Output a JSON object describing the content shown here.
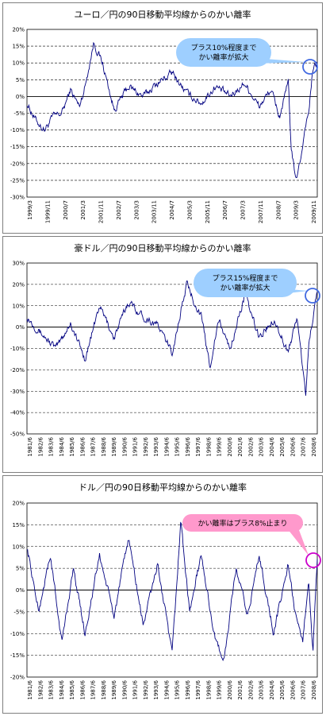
{
  "chart_data": [
    {
      "type": "line",
      "title": "ユーロ／円の90日移動平均線からのかい離率",
      "ylim": [
        -30,
        20
      ],
      "yticks": [
        "20%",
        "15%",
        "10%",
        "5%",
        "0%",
        "-5%",
        "-10%",
        "-15%",
        "-20%",
        "-25%",
        "-30%"
      ],
      "xticks": [
        "1999/3",
        "1999/11",
        "2000/7",
        "2001/3",
        "2001/11",
        "2002/7",
        "2003/3",
        "2003/11",
        "2004/7",
        "2005/3",
        "2005/11",
        "2006/7",
        "2007/3",
        "2007/11",
        "2008/7",
        "2009/3",
        "2009/11"
      ],
      "grid": true,
      "line_color": "#000080",
      "series": [
        {
          "x": [
            0,
            0.03,
            0.06,
            0.09,
            0.12,
            0.15,
            0.18,
            0.2,
            0.23,
            0.26,
            0.3,
            0.35,
            0.4,
            0.45,
            0.5,
            0.55,
            0.6,
            0.65,
            0.7,
            0.75,
            0.8,
            0.84,
            0.87,
            0.9,
            0.91,
            0.925,
            0.94,
            0.96,
            0.97,
            0.985,
            1.0
          ],
          "y": [
            -2,
            -7,
            -10,
            -6,
            -5,
            2,
            -3,
            3,
            16,
            10,
            -4,
            3,
            0,
            4,
            7,
            1,
            -2,
            3,
            0,
            4,
            -3,
            2,
            -6,
            4,
            -15,
            -25,
            -20,
            -8,
            -5,
            8,
            10
          ]
        }
      ],
      "annotation": {
        "text_line1": "プラス10%程度まで",
        "text_line2": "かい離率が拡大",
        "marker_color": "#4169E1",
        "bubble_color": "#9ECFFF"
      }
    },
    {
      "type": "line",
      "title": "豪ドル／円の90日移動平均線からのかい離率",
      "ylim": [
        -50,
        30
      ],
      "yticks": [
        "30%",
        "20%",
        "10%",
        "0%",
        "-10%",
        "-20%",
        "-30%",
        "-40%",
        "-50%"
      ],
      "xticks": [
        "1981/6",
        "1982/6",
        "1983/6",
        "1984/6",
        "1985/6",
        "1986/6",
        "1987/6",
        "1988/6",
        "1989/6",
        "1990/6",
        "1991/6",
        "1992/6",
        "1993/6",
        "1994/6",
        "1995/6",
        "1996/6",
        "1997/6",
        "1998/6",
        "1999/6",
        "2000/6",
        "2001/6",
        "2002/6",
        "2003/6",
        "2004/6",
        "2005/6",
        "2006/6",
        "2007/6",
        "2008/6"
      ],
      "grid": true,
      "line_color": "#000080",
      "series": [
        {
          "x": [
            0,
            0.05,
            0.1,
            0.15,
            0.2,
            0.25,
            0.3,
            0.35,
            0.4,
            0.45,
            0.5,
            0.55,
            0.6,
            0.63,
            0.66,
            0.7,
            0.75,
            0.8,
            0.85,
            0.9,
            0.93,
            0.95,
            0.96,
            0.97,
            0.985,
            1.0
          ],
          "y": [
            5,
            -3,
            -10,
            2,
            -15,
            10,
            -5,
            12,
            5,
            1,
            -12,
            20,
            5,
            -18,
            3,
            -10,
            15,
            -5,
            4,
            -12,
            5,
            -20,
            -32,
            -10,
            5,
            15
          ]
        }
      ],
      "annotation": {
        "text_line1": "プラス15%程度まで",
        "text_line2": "かい離率が拡大",
        "marker_color": "#4169E1",
        "bubble_color": "#9ECFFF"
      }
    },
    {
      "type": "line",
      "title": "ドル／円の90日移動平均線からのかい離率",
      "ylim": [
        -20,
        20
      ],
      "yticks": [
        "20%",
        "15%",
        "10%",
        "5%",
        "0%",
        "-5%",
        "-10%",
        "-15%",
        "-20%"
      ],
      "xticks": [
        "1981/6",
        "1982/6",
        "1983/6",
        "1984/6",
        "1985/6",
        "1986/6",
        "1987/6",
        "1988/6",
        "1989/6",
        "1990/6",
        "1991/6",
        "1992/6",
        "1993/6",
        "1994/6",
        "1995/6",
        "1996/6",
        "1997/6",
        "1998/6",
        "1999/6",
        "2000/6",
        "2001/6",
        "2002/6",
        "2003/6",
        "2004/6",
        "2005/6",
        "2006/6",
        "2007/6",
        "2008/6"
      ],
      "grid": true,
      "line_color": "#000080",
      "series": [
        {
          "x": [
            0,
            0.04,
            0.08,
            0.12,
            0.16,
            0.2,
            0.25,
            0.3,
            0.35,
            0.4,
            0.45,
            0.5,
            0.53,
            0.56,
            0.6,
            0.65,
            0.68,
            0.72,
            0.76,
            0.8,
            0.85,
            0.9,
            0.93,
            0.95,
            0.97,
            0.985,
            1.0
          ],
          "y": [
            10,
            -5,
            8,
            -12,
            5,
            -10,
            8,
            -6,
            12,
            -8,
            6,
            -15,
            16,
            -5,
            8,
            -12,
            -16,
            5,
            -6,
            8,
            -10,
            6,
            -8,
            -12,
            3,
            -14,
            7
          ]
        }
      ],
      "annotation": {
        "text_line1": "かい離率はプラス8%止まり",
        "marker_color": "#CC00CC",
        "bubble_color": "#FF99CC"
      }
    }
  ]
}
